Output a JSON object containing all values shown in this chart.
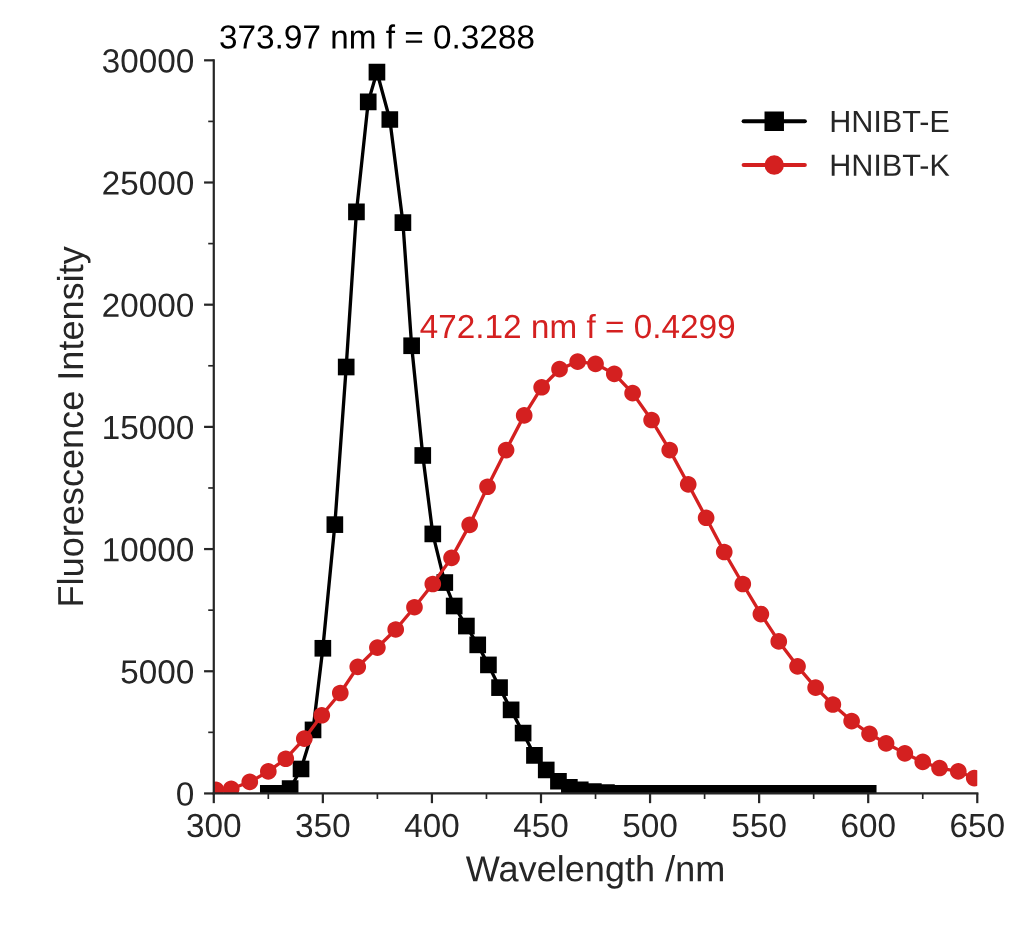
{
  "chart_data": {
    "type": "line",
    "xlabel": "Wavelength /nm",
    "ylabel": "Fluorescence Intensity",
    "xlim": [
      300,
      650
    ],
    "ylim": [
      0,
      30000
    ],
    "xticks": [
      300,
      350,
      400,
      450,
      500,
      550,
      600,
      650
    ],
    "yticks": [
      0,
      5000,
      10000,
      15000,
      20000,
      25000,
      30000
    ],
    "grid": false,
    "legend": "top right",
    "line_style": "solid",
    "series": [
      {
        "name": "HNIBT-E",
        "color": "#000000",
        "marker": "square",
        "x": [
          325,
          330,
          335,
          340,
          345.5,
          350,
          355.5,
          360.7,
          365.4,
          370.8,
          374.8,
          380.7,
          386.7,
          390.7,
          395.8,
          400.4,
          405.9,
          410.2,
          415.8,
          421,
          425.9,
          431,
          436.3,
          441.8,
          447,
          452.4,
          458,
          463,
          468,
          474,
          480,
          485,
          490,
          495,
          500,
          505,
          510,
          515,
          520,
          525,
          530,
          535,
          540,
          545,
          550,
          555,
          560,
          565,
          570,
          575,
          580,
          585,
          590,
          595,
          600
        ],
        "values": [
          0,
          0,
          200,
          1000,
          2600,
          5940,
          11000,
          17450,
          23800,
          28300,
          29520,
          27580,
          23360,
          18320,
          13830,
          10620,
          8630,
          7670,
          6850,
          6080,
          5260,
          4330,
          3420,
          2470,
          1560,
          960,
          500,
          250,
          150,
          80,
          40,
          0,
          0,
          0,
          0,
          0,
          0,
          0,
          0,
          0,
          0,
          0,
          0,
          0,
          0,
          0,
          0,
          0,
          0,
          0,
          0,
          0,
          0,
          0,
          0
        ]
      },
      {
        "name": "HNIBT-K",
        "color": "#d42020",
        "marker": "circle",
        "x": [
          301,
          308,
          316.5,
          325,
          333,
          341.5,
          349.5,
          358,
          366,
          375,
          383.4,
          392,
          400.4,
          409,
          417.3,
          425.5,
          434,
          442.3,
          450.3,
          458.5,
          466.8,
          475,
          483.6,
          492,
          500.7,
          509,
          517.5,
          525.7,
          534,
          542.5,
          550.8,
          559,
          567.6,
          575.9,
          583.8,
          592.4,
          600.6,
          608.2,
          616.8,
          625,
          632.7,
          641.3,
          648.6
        ],
        "values": [
          150,
          190,
          470,
          900,
          1420,
          2240,
          3200,
          4110,
          5180,
          5970,
          6710,
          7620,
          8570,
          9640,
          10990,
          12550,
          14050,
          15470,
          16620,
          17360,
          17670,
          17580,
          17170,
          16380,
          15280,
          14050,
          12650,
          11280,
          9880,
          8570,
          7340,
          6220,
          5200,
          4330,
          3640,
          2960,
          2440,
          2050,
          1640,
          1290,
          1040,
          900,
          630
        ]
      }
    ],
    "annotations": [
      {
        "text": "373.97 nm f = 0.3288",
        "x": 374.8,
        "y": 29520
      },
      {
        "text": "472.12 nm f = 0.4299",
        "x": 466.8,
        "y": 17670
      }
    ]
  }
}
